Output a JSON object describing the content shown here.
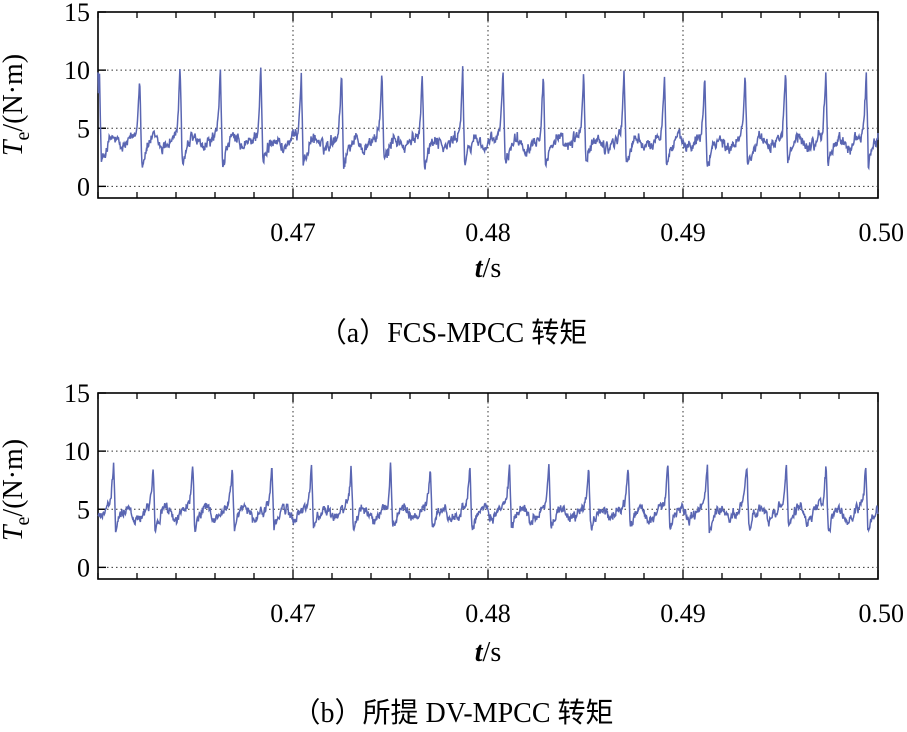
{
  "chart_data": [
    {
      "type": "line",
      "caption": "（a）FCS-MPCC 转矩",
      "ylabel_main": "T",
      "ylabel_sub": "e",
      "ylabel_unit": "/(N·m)",
      "xlabel_main": "t",
      "xlabel_unit": "/s",
      "xlim": [
        0.46,
        0.5
      ],
      "ylim": [
        -1,
        15
      ],
      "yticks": [
        0,
        5,
        10,
        15
      ],
      "xticks": [
        0.47,
        0.48,
        0.49,
        0.5
      ],
      "xtick_labels": [
        "0.47",
        "0.48",
        "0.49",
        "0.50"
      ],
      "grid": "dotted",
      "color": "#5a66b2",
      "series": [
        {
          "period": 0.00207,
          "phase": 0.46007,
          "peak": 10.0,
          "drop_to": 1.9,
          "baseline": 3.2,
          "mid_bump": 4.8,
          "noise": 0.55
        }
      ]
    },
    {
      "type": "line",
      "caption": "（b）所提 DV-MPCC 转矩",
      "ylabel_main": "T",
      "ylabel_sub": "e",
      "ylabel_unit": "/(N·m)",
      "xlabel_main": "t",
      "xlabel_unit": "/s",
      "xlim": [
        0.46,
        0.5
      ],
      "ylim": [
        -1,
        15
      ],
      "yticks": [
        0,
        5,
        10,
        15
      ],
      "xticks": [
        0.47,
        0.48,
        0.49,
        0.5
      ],
      "xtick_labels": [
        "0.47",
        "0.48",
        "0.49",
        "0.50"
      ],
      "grid": "dotted",
      "color": "#5a66b2",
      "series": [
        {
          "period": 0.00203,
          "phase": 0.4608,
          "peak": 8.8,
          "drop_to": 3.3,
          "baseline": 4.0,
          "mid_bump": 5.8,
          "noise": 0.45
        }
      ]
    }
  ]
}
